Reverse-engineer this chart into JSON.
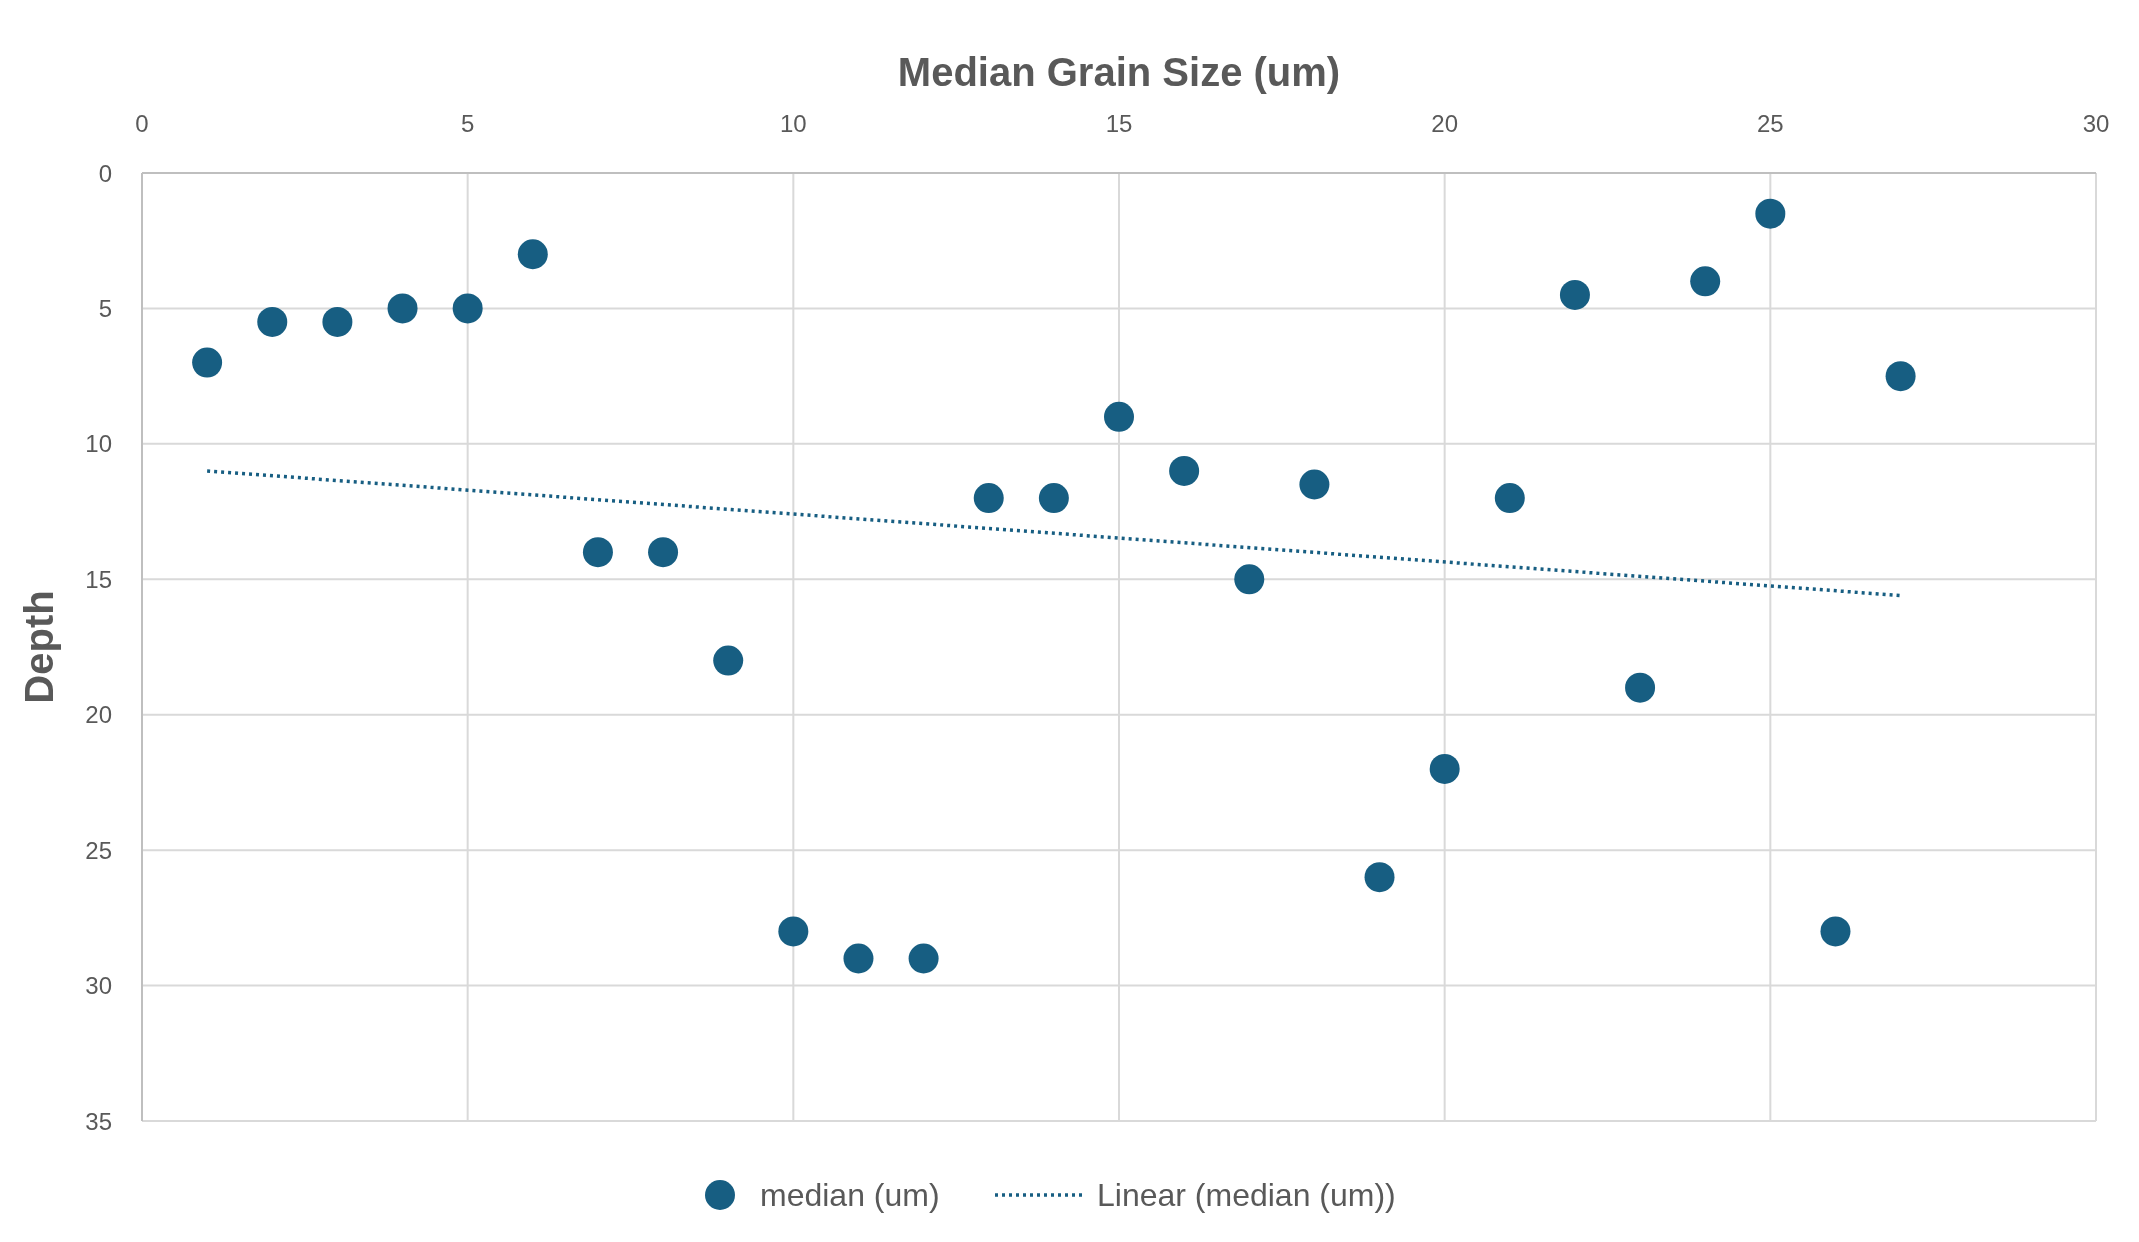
{
  "chart_data": {
    "type": "scatter",
    "xlabel": "Median Grain Size (um)",
    "ylabel": "Depth",
    "xlim": [
      0,
      30
    ],
    "xticks": [
      0,
      5,
      10,
      15,
      20,
      25,
      30
    ],
    "ylim": [
      35,
      0
    ],
    "yticks": [
      0,
      5,
      10,
      15,
      20,
      25,
      30,
      35
    ],
    "grid": true,
    "legend": "bottom",
    "marker": "circle",
    "series": [
      {
        "name": "median (um)",
        "color": "#175e82",
        "x": [
          1,
          2,
          3,
          4,
          5,
          6,
          7,
          8,
          9,
          10,
          11,
          12,
          13,
          14,
          15,
          16,
          17,
          18,
          19,
          20,
          21,
          22,
          23,
          24,
          25,
          26,
          27
        ],
        "values": [
          7,
          5.5,
          5.5,
          5,
          5,
          3,
          14,
          14,
          18,
          28,
          29,
          29,
          12,
          12,
          9,
          11,
          15,
          11.5,
          26,
          22,
          12,
          4.5,
          19,
          4,
          1.5,
          28,
          7.5
        ]
      },
      {
        "name": "Linear (median (um))",
        "type": "line",
        "color": "#175e82",
        "line_style": "dotted",
        "marker": "none",
        "x": [
          1,
          27
        ],
        "values": [
          11,
          15.6
        ]
      }
    ]
  }
}
